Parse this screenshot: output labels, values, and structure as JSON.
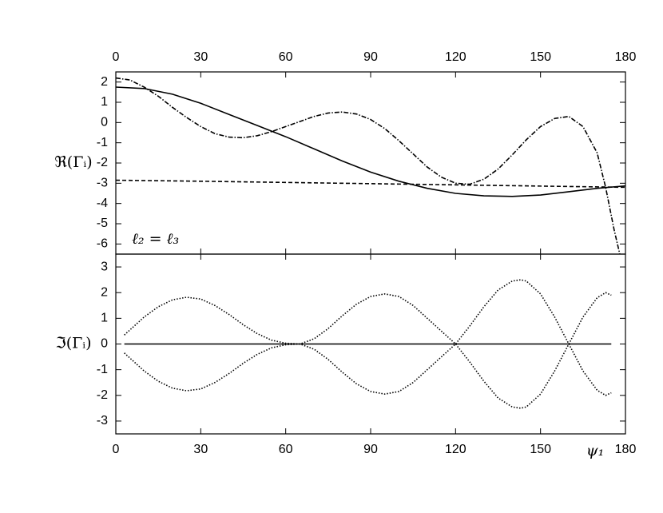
{
  "chart_data": [
    {
      "type": "line",
      "xlim": [
        0,
        180
      ],
      "xticks": [
        0,
        30,
        60,
        90,
        120,
        150,
        180
      ],
      "xaxis_position": "top",
      "ylim": [
        -6.5,
        2.5
      ],
      "yticks": [
        2,
        1,
        0,
        -1,
        -2,
        -3,
        -4,
        -5,
        -6
      ],
      "ylabel": "ℜ(Γᵢ)",
      "annotation": "ℓ₂ = ℓ₃",
      "series": [
        {
          "color": "#000000",
          "style": "solid",
          "x": [
            0,
            10,
            20,
            30,
            40,
            50,
            60,
            70,
            80,
            90,
            100,
            110,
            120,
            130,
            140,
            150,
            160,
            170,
            180
          ],
          "values": [
            1.75,
            1.68,
            1.4,
            0.95,
            0.4,
            -0.15,
            -0.7,
            -1.3,
            -1.9,
            -2.45,
            -2.9,
            -3.25,
            -3.5,
            -3.62,
            -3.65,
            -3.58,
            -3.42,
            -3.25,
            -3.13
          ]
        },
        {
          "color": "#000000",
          "style": "dashed",
          "x": [
            0,
            30,
            60,
            90,
            120,
            150,
            180
          ],
          "values": [
            -2.85,
            -2.9,
            -2.96,
            -3.02,
            -3.08,
            -3.14,
            -3.2
          ]
        },
        {
          "color": "#000000",
          "style": "dashdot",
          "x": [
            0,
            5,
            10,
            15,
            20,
            25,
            30,
            35,
            40,
            45,
            50,
            55,
            60,
            65,
            70,
            75,
            80,
            85,
            90,
            95,
            100,
            105,
            110,
            115,
            120,
            125,
            130,
            135,
            140,
            145,
            150,
            155,
            160,
            165,
            170,
            173,
            176,
            178
          ],
          "values": [
            2.2,
            2.1,
            1.75,
            1.3,
            0.75,
            0.25,
            -0.2,
            -0.55,
            -0.72,
            -0.75,
            -0.65,
            -0.45,
            -0.2,
            0.05,
            0.3,
            0.47,
            0.52,
            0.42,
            0.15,
            -0.3,
            -0.9,
            -1.55,
            -2.2,
            -2.7,
            -3.0,
            -3.05,
            -2.8,
            -2.3,
            -1.6,
            -0.85,
            -0.2,
            0.2,
            0.3,
            -0.2,
            -1.5,
            -3.2,
            -5.3,
            -6.5
          ]
        }
      ]
    },
    {
      "type": "line",
      "xlim": [
        0,
        180
      ],
      "xticks": [
        0,
        30,
        60,
        90,
        120,
        150,
        180
      ],
      "xaxis_position": "bottom",
      "ylim": [
        -3.5,
        3.5
      ],
      "yticks": [
        3,
        2,
        1,
        0,
        -1,
        -2,
        -3
      ],
      "ylabel": "ℑ(Γᵢ)",
      "xlabel": "ψ₁",
      "series": [
        {
          "color": "#000000",
          "style": "dotted",
          "x": [
            3,
            10,
            15,
            20,
            25,
            30,
            35,
            40,
            45,
            50,
            55,
            60,
            65,
            70,
            75,
            80,
            85,
            90,
            95,
            100,
            105,
            110,
            115,
            120,
            125,
            130,
            135,
            140,
            143,
            145,
            150,
            155,
            160,
            165,
            170,
            173,
            175
          ],
          "values": [
            0.35,
            1.05,
            1.45,
            1.72,
            1.82,
            1.75,
            1.5,
            1.15,
            0.75,
            0.4,
            0.15,
            0.03,
            0.0,
            0.2,
            0.6,
            1.1,
            1.55,
            1.85,
            1.95,
            1.85,
            1.5,
            1.0,
            0.5,
            0.0,
            -0.7,
            -1.45,
            -2.1,
            -2.45,
            -2.5,
            -2.45,
            -1.95,
            -1.05,
            0.0,
            1.05,
            1.8,
            2.0,
            1.9
          ]
        },
        {
          "color": "#000000",
          "style": "dotted",
          "x": [
            3,
            10,
            15,
            20,
            25,
            30,
            35,
            40,
            45,
            50,
            55,
            60,
            65,
            70,
            75,
            80,
            85,
            90,
            95,
            100,
            105,
            110,
            115,
            120,
            125,
            130,
            135,
            140,
            143,
            145,
            150,
            155,
            160,
            165,
            170,
            173,
            175
          ],
          "values": [
            -0.35,
            -1.05,
            -1.45,
            -1.72,
            -1.82,
            -1.75,
            -1.5,
            -1.15,
            -0.75,
            -0.4,
            -0.15,
            -0.03,
            0.0,
            -0.2,
            -0.6,
            -1.1,
            -1.55,
            -1.85,
            -1.95,
            -1.85,
            -1.5,
            -1.0,
            -0.5,
            0.0,
            0.7,
            1.45,
            2.1,
            2.45,
            2.5,
            2.45,
            1.95,
            1.05,
            0.0,
            -1.05,
            -1.8,
            -2.0,
            -1.9
          ]
        },
        {
          "color": "#000000",
          "style": "solid",
          "x": [
            3,
            175
          ],
          "values": [
            0,
            0
          ]
        }
      ]
    }
  ]
}
